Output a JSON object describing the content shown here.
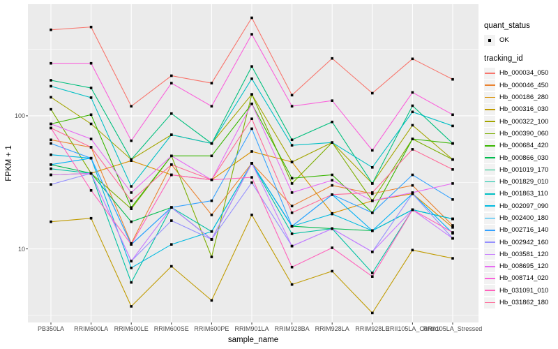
{
  "chart_data": {
    "type": "line",
    "title": "",
    "xlabel": "sample_name",
    "ylabel": "FPKM + 1",
    "y_scale": "log10",
    "ylim": [
      2.8,
      690
    ],
    "grid": true,
    "legend_position": "right",
    "panel_bg": "#EBEBEB",
    "grid_color": "#FFFFFF",
    "point_color": "#000000",
    "point_shape": "filled-square",
    "axis_text_color": "#4D4D4D",
    "legend_key_bg": "#F2F2F2",
    "yticks": [
      {
        "value": 10,
        "label": "10"
      },
      {
        "value": 100,
        "label": "100"
      }
    ],
    "minor_yticks": [
      3.162,
      31.62,
      316.2
    ],
    "categories": [
      "PB350LA",
      "RRIM600LA",
      "RRIM600LE",
      "RRIM600SE",
      "RRIM600PE",
      "RRIM901LA",
      "RRIM928BA",
      "RRIM928LA",
      "RRIM928LE",
      "RRII105LA_Control",
      "RRII105LA_Stressed"
    ],
    "legend": {
      "shape_title": "quant_status",
      "shape_items": [
        {
          "label": "OK"
        }
      ],
      "color_title": "tracking_id"
    },
    "series": [
      {
        "name": "Hb_000034_050",
        "color": "#F8766D",
        "values": [
          443,
          465,
          118,
          200,
          176,
          545,
          143,
          270,
          148,
          268,
          188
        ]
      },
      {
        "name": "Hb_000046_450",
        "color": "#EA8331",
        "values": [
          66,
          58,
          11,
          43,
          18,
          44,
          21,
          30,
          26,
          30,
          15
        ]
      },
      {
        "name": "Hb_000186_280",
        "color": "#D89000",
        "values": [
          36,
          37,
          46,
          36,
          33,
          54,
          45,
          18.5,
          23,
          26,
          14.5
        ]
      },
      {
        "name": "Hb_000316_030",
        "color": "#C09B00",
        "values": [
          16,
          17,
          3.7,
          7.4,
          4.1,
          18,
          5.4,
          6.8,
          3.3,
          9.8,
          8.5
        ]
      },
      {
        "name": "Hb_000322_100",
        "color": "#A3A500",
        "values": [
          138,
          87,
          47,
          72,
          62,
          145,
          45,
          63,
          31,
          85,
          47
        ]
      },
      {
        "name": "Hb_000390_060",
        "color": "#7CAE00",
        "values": [
          112,
          37,
          20,
          50,
          8.7,
          145,
          31,
          63,
          23,
          67,
          47
        ]
      },
      {
        "name": "Hb_000684_420",
        "color": "#39B600",
        "values": [
          87,
          102,
          20.5,
          50,
          50,
          123,
          34,
          36,
          18.7,
          67,
          62
        ]
      },
      {
        "name": "Hb_000866_030",
        "color": "#00BB4E",
        "values": [
          43,
          37,
          16,
          20.5,
          11.8,
          44,
          14.8,
          14.2,
          13.7,
          19.7,
          16.8
        ]
      },
      {
        "name": "Hb_001019_170",
        "color": "#00BF7D",
        "values": [
          185,
          162,
          47,
          104,
          62,
          235,
          66,
          90,
          31,
          119,
          62
        ]
      },
      {
        "name": "Hb_001829_010",
        "color": "#00C1A3",
        "values": [
          40,
          37,
          5.6,
          20.5,
          13.5,
          44,
          13,
          14.2,
          6.6,
          19.7,
          16.8
        ]
      },
      {
        "name": "Hb_001863_110",
        "color": "#00BFC4",
        "values": [
          167,
          137,
          29.5,
          72,
          62,
          190,
          60,
          63,
          41,
          107,
          84
        ]
      },
      {
        "name": "Hb_002097_090",
        "color": "#00BAE0",
        "values": [
          51,
          48,
          7.2,
          10.8,
          13.5,
          44,
          14.8,
          18.3,
          13.7,
          19.7,
          16.8
        ]
      },
      {
        "name": "Hb_002400_180",
        "color": "#00B0F6",
        "values": [
          43,
          48,
          10.8,
          20.5,
          11.8,
          44,
          14.8,
          25.6,
          13.7,
          26,
          13.1
        ]
      },
      {
        "name": "Hb_002716_140",
        "color": "#35A2FF",
        "values": [
          62,
          48,
          10.8,
          20.5,
          23,
          80,
          14.8,
          25.6,
          18.7,
          36,
          23.5
        ]
      },
      {
        "name": "Hb_002942_160",
        "color": "#9590FF",
        "values": [
          30.5,
          37,
          8.1,
          16.3,
          11.8,
          31.5,
          10.5,
          14.2,
          9.5,
          26,
          12
        ]
      },
      {
        "name": "Hb_003581_120",
        "color": "#C77CFF",
        "values": [
          36,
          37,
          8.1,
          20.5,
          11.8,
          44,
          10.5,
          14.2,
          9.5,
          19.7,
          12
        ]
      },
      {
        "name": "Hb_008695_120",
        "color": "#E76BF3",
        "values": [
          87,
          67,
          26.5,
          50,
          33,
          123,
          26.5,
          32.8,
          23,
          26.5,
          31
        ]
      },
      {
        "name": "Hb_008714_020",
        "color": "#FA62DB",
        "values": [
          248,
          248,
          65,
          176,
          118,
          410,
          118,
          130,
          55,
          150,
          102
        ]
      },
      {
        "name": "Hb_031091_010",
        "color": "#FF62BC",
        "values": [
          81,
          27.5,
          10.8,
          36,
          33,
          34.5,
          7.3,
          10.2,
          6.2,
          19.7,
          13.3
        ]
      },
      {
        "name": "Hb_031862_180",
        "color": "#FF6A98",
        "values": [
          81,
          58,
          23,
          43,
          33,
          95,
          18.7,
          25.6,
          26.5,
          56,
          39.5
        ]
      }
    ]
  }
}
